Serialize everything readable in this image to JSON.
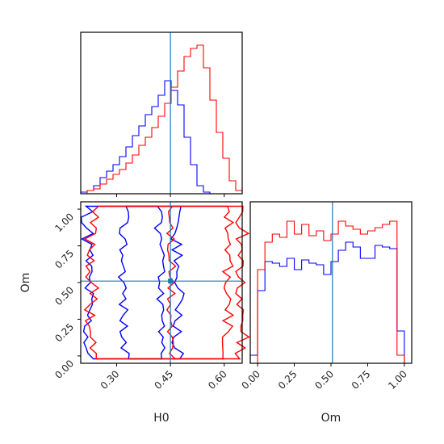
{
  "chart_data": [
    {
      "type": "histogram",
      "panel": "H0 marginal",
      "xlim": [
        0.2,
        0.65
      ],
      "truth": 0.45,
      "bin_edges": [
        0.2,
        0.218,
        0.236,
        0.254,
        0.272,
        0.29,
        0.308,
        0.326,
        0.344,
        0.362,
        0.38,
        0.398,
        0.416,
        0.434,
        0.452,
        0.47,
        0.488,
        0.506,
        0.524,
        0.542,
        0.56,
        0.578,
        0.596,
        0.614,
        0.632,
        0.65
      ],
      "series": [
        {
          "color": "#0000ff",
          "values": [
            0.01,
            0.02,
            0.05,
            0.1,
            0.14,
            0.18,
            0.23,
            0.29,
            0.36,
            0.42,
            0.49,
            0.54,
            0.61,
            0.7,
            0.64,
            0.55,
            0.35,
            0.18,
            0.05,
            0.01,
            0.0,
            0.0,
            0.0,
            0.0,
            0.0
          ]
        },
        {
          "color": "#ff0000",
          "values": [
            0.0,
            0.02,
            0.03,
            0.06,
            0.09,
            0.12,
            0.15,
            0.19,
            0.24,
            0.3,
            0.35,
            0.41,
            0.48,
            0.56,
            0.66,
            0.76,
            0.85,
            0.9,
            0.92,
            0.78,
            0.58,
            0.38,
            0.22,
            0.08,
            0.02
          ]
        }
      ]
    },
    {
      "type": "contour",
      "panel": "H0 vs Om joint",
      "xlabel": "H0",
      "ylabel": "Om",
      "xlim": [
        0.2,
        0.65
      ],
      "ylim": [
        -0.05,
        1.05
      ],
      "xticks": [
        "0.30",
        "0.45",
        "0.60"
      ],
      "yticks": [
        "0.00",
        "0.25",
        "0.50",
        "0.75",
        "1.00"
      ],
      "truth": {
        "H0": 0.45,
        "Om": 0.51
      },
      "series": [
        {
          "color": "#0000ff",
          "contour_bounds": [
            [
              0.22,
              0.47
            ],
            [
              0.32,
              0.42
            ]
          ]
        },
        {
          "color": "#ff0000",
          "contour_bounds": [
            [
              0.23,
              0.65
            ],
            [
              0.45,
              0.61
            ]
          ]
        }
      ]
    },
    {
      "type": "histogram",
      "panel": "Om marginal",
      "xlabel": "Om",
      "xlim": [
        -0.05,
        1.05
      ],
      "xticks": [
        "0.00",
        "0.25",
        "0.50",
        "0.75",
        "1.00"
      ],
      "truth": 0.51,
      "bin_edges": [
        -0.05,
        0.0,
        0.05,
        0.1,
        0.15,
        0.2,
        0.25,
        0.3,
        0.35,
        0.4,
        0.45,
        0.5,
        0.55,
        0.6,
        0.65,
        0.7,
        0.75,
        0.8,
        0.85,
        0.9,
        0.95,
        1.0,
        1.05
      ],
      "series": [
        {
          "color": "#0000ff",
          "values": [
            0.05,
            0.45,
            0.63,
            0.62,
            0.6,
            0.65,
            0.58,
            0.64,
            0.62,
            0.61,
            0.55,
            0.63,
            0.7,
            0.75,
            0.72,
            0.65,
            0.65,
            0.73,
            0.72,
            0.71,
            0.2,
            0.0
          ]
        },
        {
          "color": "#ff0000",
          "values": [
            0.0,
            0.58,
            0.75,
            0.8,
            0.78,
            0.88,
            0.8,
            0.86,
            0.79,
            0.82,
            0.76,
            0.8,
            0.88,
            0.85,
            0.83,
            0.8,
            0.82,
            0.84,
            0.86,
            0.88,
            0.05,
            0.0
          ]
        }
      ]
    }
  ]
}
